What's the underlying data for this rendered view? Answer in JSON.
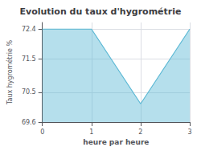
{
  "chart_data": {
    "type": "area",
    "title": "Evolution du taux d'hygrométrie",
    "xlabel": "heure par heure",
    "ylabel": "Taux hygrométrie %",
    "x": [
      0,
      1,
      2,
      3
    ],
    "values": [
      72.4,
      72.4,
      70.15,
      72.4
    ],
    "color": "#5bb8d4",
    "xlim": [
      0,
      3
    ],
    "xticks": [
      0,
      1,
      2,
      3
    ],
    "ylim": [
      69.6,
      72.6
    ],
    "yticks": [
      69.6,
      70.5,
      71.5,
      72.4
    ],
    "grid": true
  }
}
